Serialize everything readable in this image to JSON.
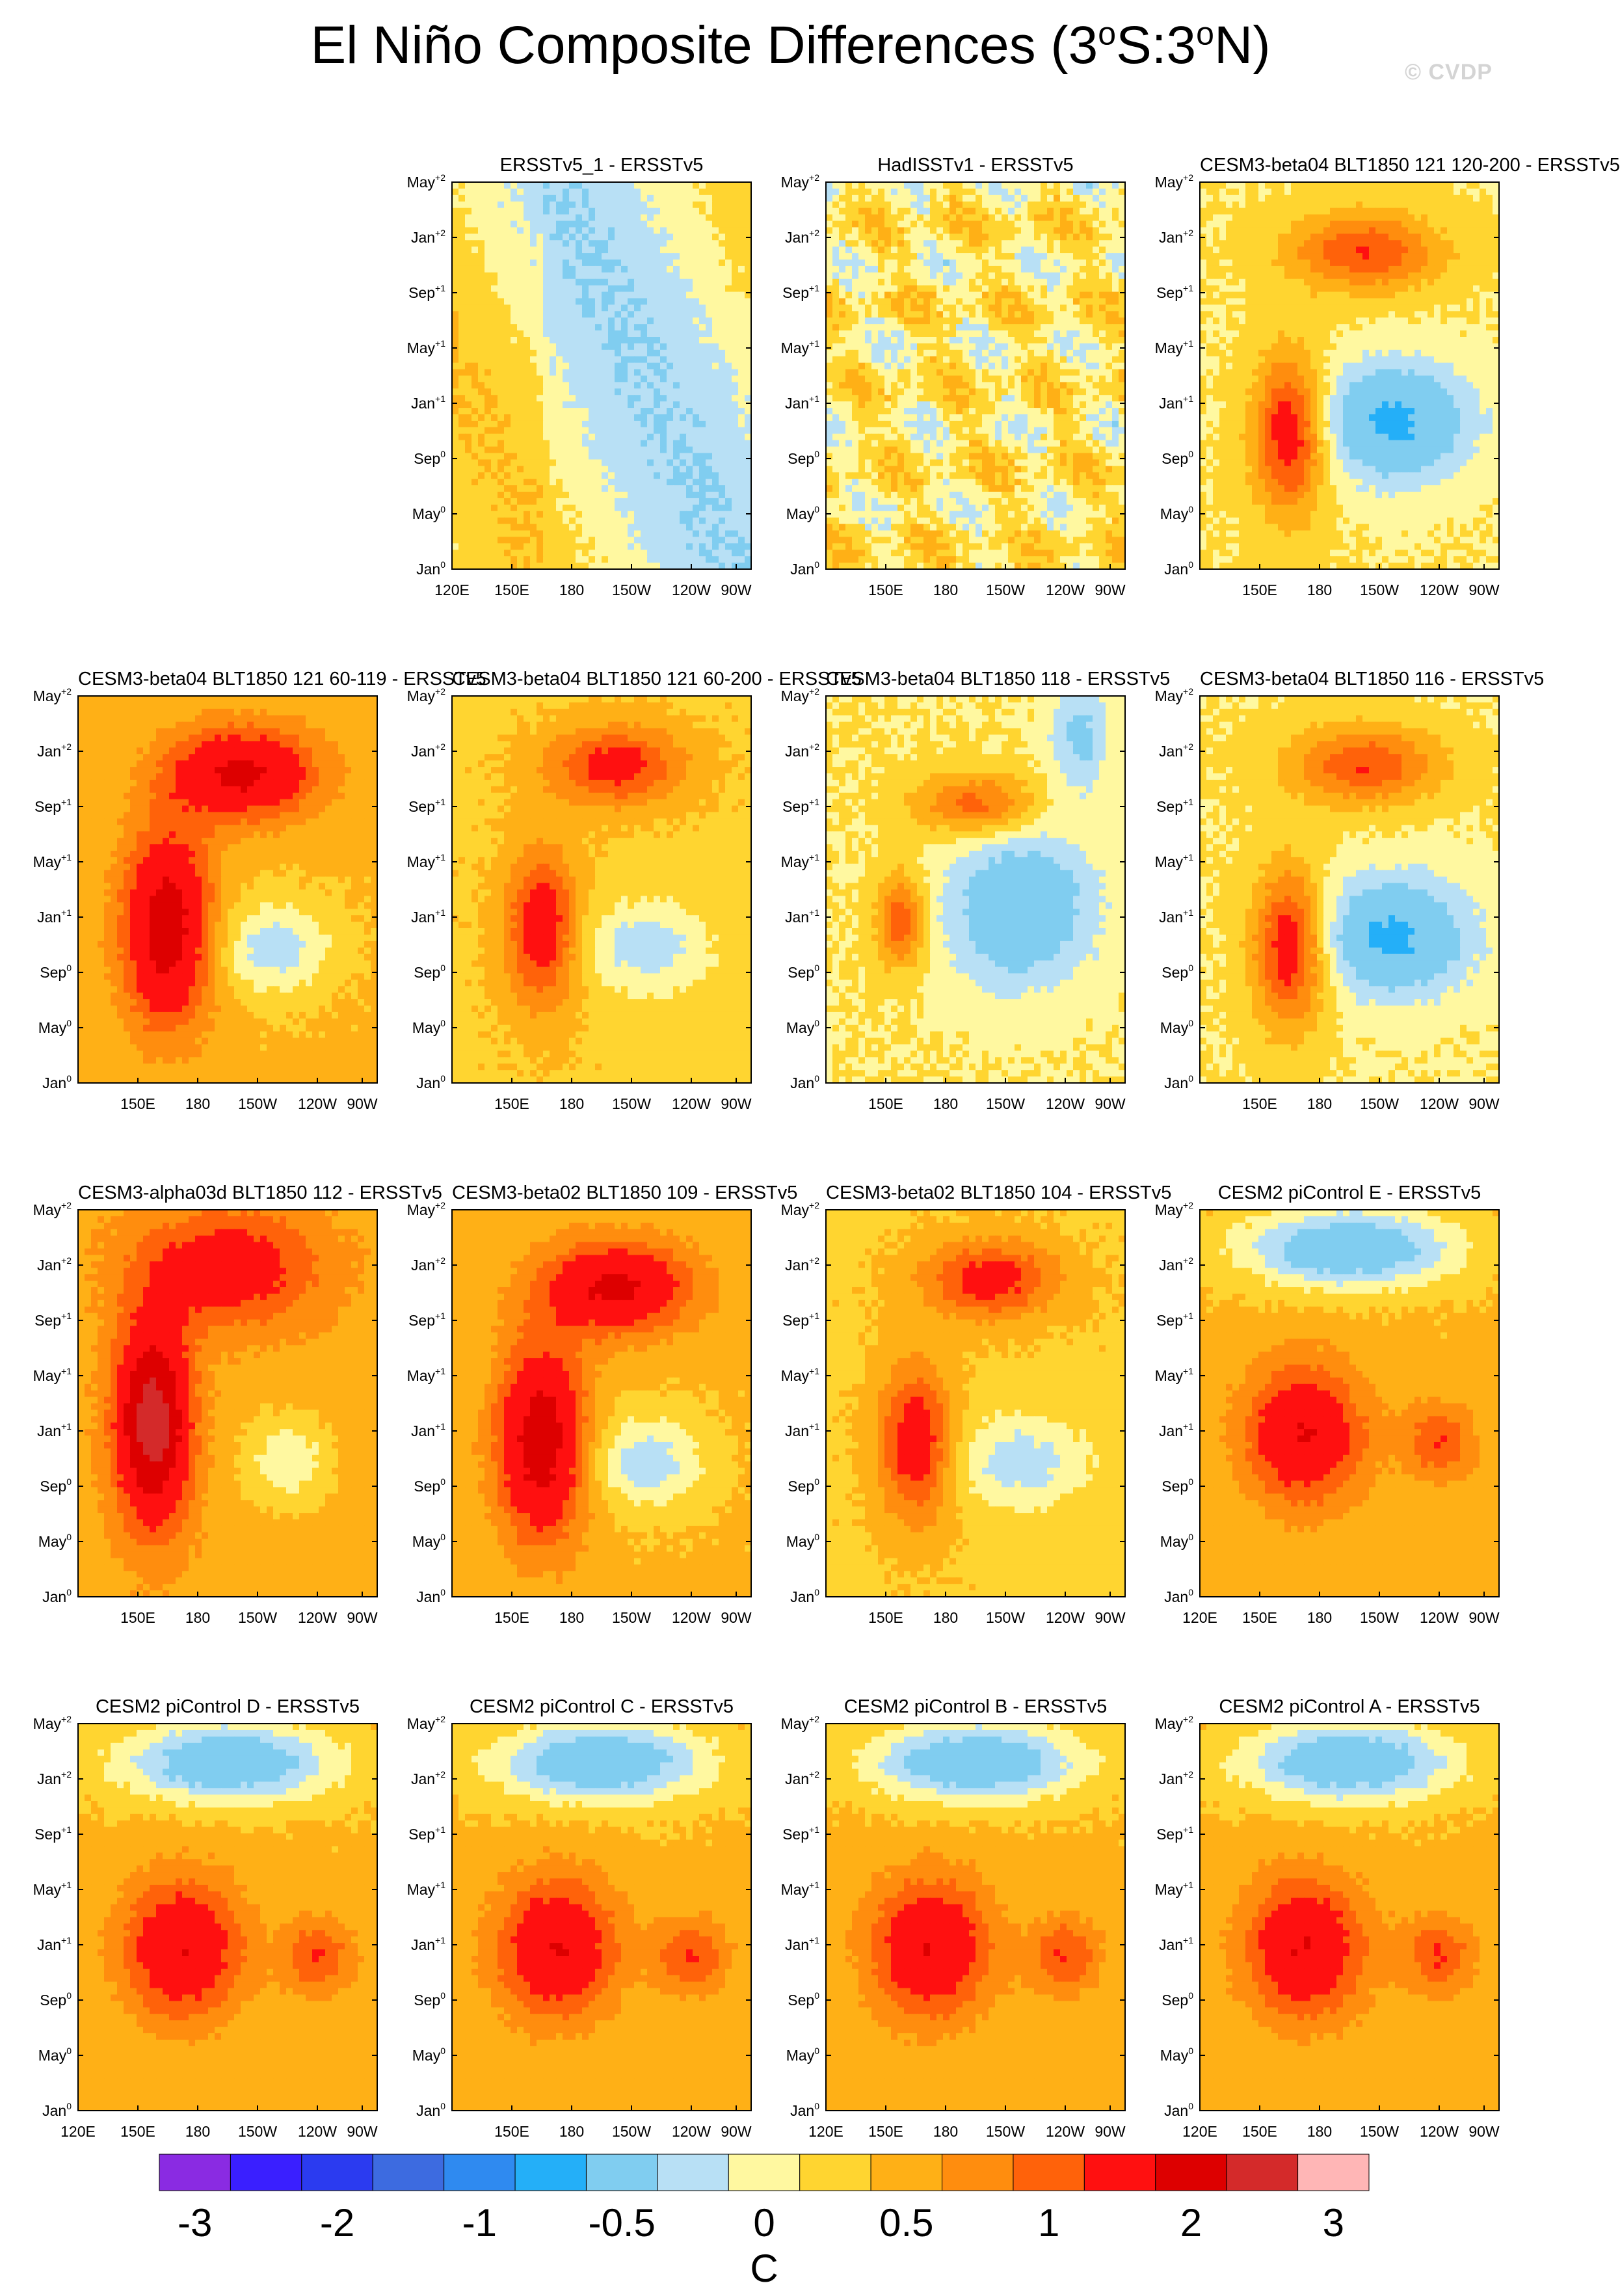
{
  "title": {
    "prefix": "El Niño Composite Differences (3",
    "sup1": "o",
    "mid": "S:3",
    "sup2": "o",
    "suffix": "N)"
  },
  "watermark": "© CVDP",
  "y_ticks": [
    {
      "base": "Jan",
      "sup": "0"
    },
    {
      "base": "May",
      "sup": "0"
    },
    {
      "base": "Sep",
      "sup": "0"
    },
    {
      "base": "Jan",
      "sup": "+1"
    },
    {
      "base": "May",
      "sup": "+1"
    },
    {
      "base": "Sep",
      "sup": "+1"
    },
    {
      "base": "Jan",
      "sup": "+2"
    },
    {
      "base": "May",
      "sup": "+2"
    }
  ],
  "x_ticks": [
    "120E",
    "150E",
    "180",
    "150W",
    "120W",
    "90W"
  ],
  "unit": "C",
  "colors": [
    "#8a2be2",
    "#3a1fff",
    "#2b3bf0",
    "#3d6be0",
    "#2f8af0",
    "#24aff8",
    "#80cdf0",
    "#b8e0f5",
    "#fff8a0",
    "#ffd530",
    "#ffb016",
    "#ff8d0e",
    "#ff620a",
    "#ff1010",
    "#dd0000",
    "#d42a2a",
    "#ffb6b6"
  ],
  "chart_data": {
    "type": "heatmap",
    "description_levels": [
      -3.5,
      -3,
      -2.5,
      -2,
      -1.5,
      -1,
      -0.5,
      -0.25,
      0,
      0.25,
      0.5,
      0.75,
      1,
      1.5,
      2,
      2.5,
      3
    ],
    "colorbar": {
      "labels": [
        "-3",
        "-2",
        "-1",
        "-0.5",
        "0",
        "0.5",
        "1",
        "2",
        "3"
      ],
      "title": "C"
    },
    "panels": [
      {
        "title": "ERSSTv5_1 - ERSSTv5",
        "unit": "C",
        "pattern": "near_zero",
        "show_x0": true
      },
      {
        "title": "HadISSTv1 - ERSSTv5",
        "unit": "C",
        "pattern": "noisy_small",
        "show_x0": false
      },
      {
        "title": "CESM3-beta04 BLT1850 121 120-200 - ERSSTv5",
        "pattern": "strong_warm_cool",
        "show_x0": false
      },
      {
        "title": "CESM3-beta04 BLT1850 121 60-119 - ERSSTv5",
        "pattern": "warm_dominant",
        "show_x0": false
      },
      {
        "title": "CESM3-beta04 BLT1850 121 60-200 - ERSSTv5",
        "pattern": "warm_moderate",
        "show_x0": false
      },
      {
        "title": "CESM3-beta04 BLT1850 118 - ERSSTv5",
        "pattern": "cool_band",
        "show_x0": false
      },
      {
        "title": "CESM3-beta04 BLT1850 116 - ERSSTv5",
        "pattern": "strong_warm_cool",
        "show_x0": false
      },
      {
        "title": "CESM3-alpha03d BLT1850 112 - ERSSTv5",
        "pattern": "warm_strong",
        "show_x0": false
      },
      {
        "title": "CESM3-beta02 BLT1850 109 - ERSSTv5",
        "pattern": "warm_dominant",
        "show_x0": false
      },
      {
        "title": "CESM3-beta02 BLT1850 104 - ERSSTv5",
        "pattern": "warm_moderate",
        "show_x0": false
      },
      {
        "title": "CESM2 piControl E - ERSSTv5",
        "pattern": "cool_top_warm_bottom",
        "show_x0": true
      },
      {
        "title": "CESM2 piControl D - ERSSTv5",
        "pattern": "cool_top_warm_bottom",
        "show_x0": true
      },
      {
        "title": "CESM2 piControl C - ERSSTv5",
        "pattern": "cool_top_warm_bottom",
        "show_x0": false
      },
      {
        "title": "CESM2 piControl B - ERSSTv5",
        "pattern": "cool_top_warm_bottom",
        "show_x0": true
      },
      {
        "title": "CESM2 piControl A - ERSSTv5",
        "pattern": "cool_top_warm_bottom",
        "show_x0": true
      }
    ]
  }
}
